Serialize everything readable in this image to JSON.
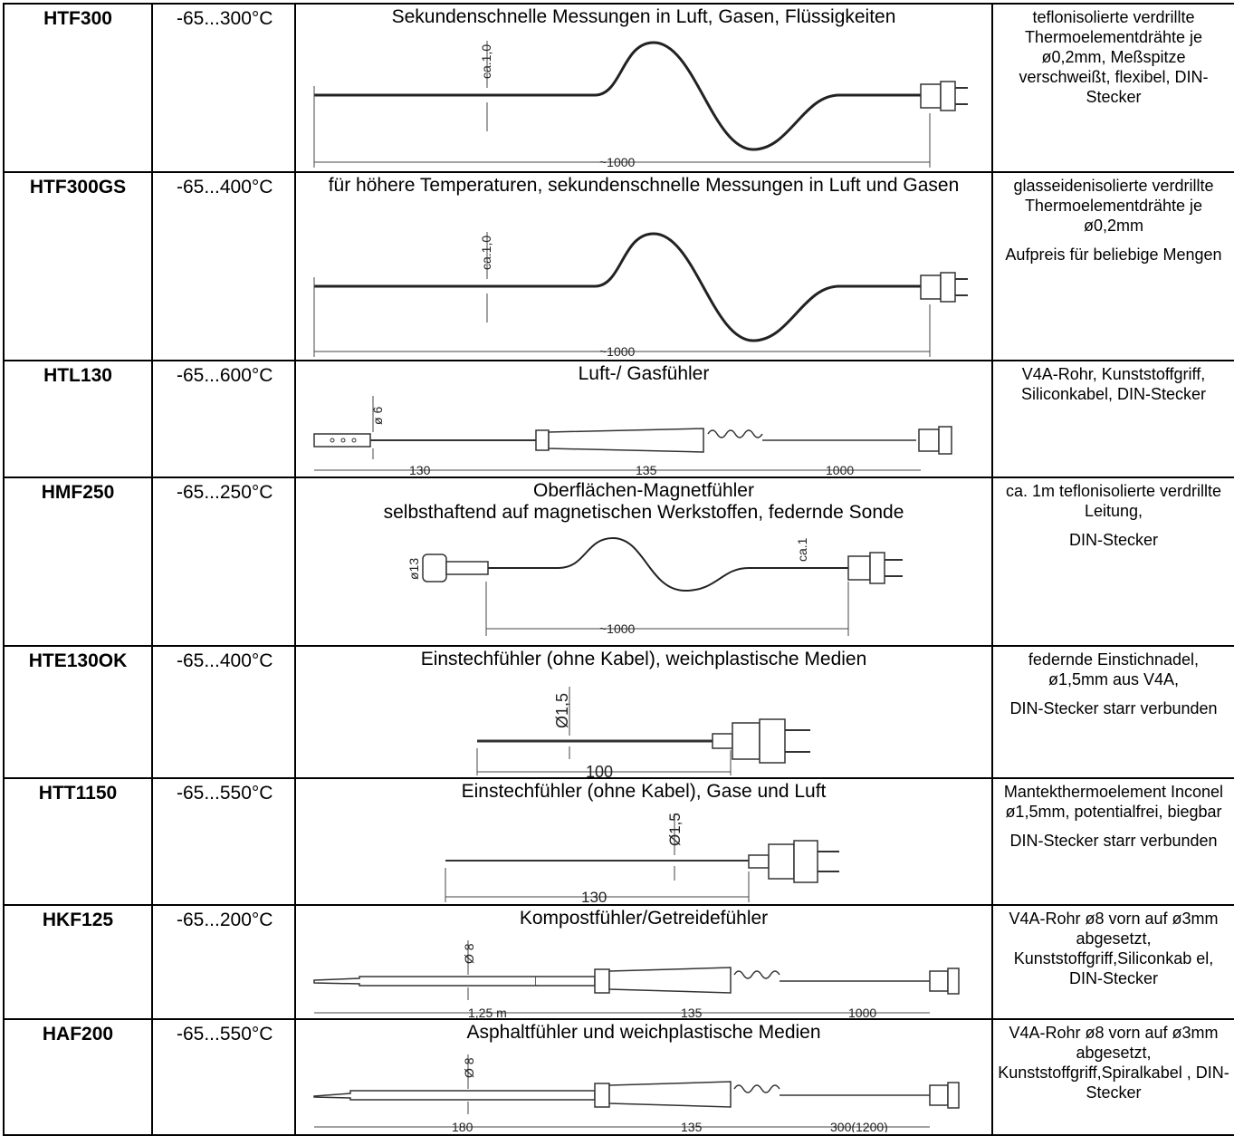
{
  "rows": [
    {
      "model": "HTF300",
      "range": "-65...300°C",
      "desc": [
        "Sekundenschnelle Messungen in Luft, Gasen, Flüssigkeiten"
      ],
      "notes": [
        "teflonisolierte verdrillte Thermoelementdrähte je ø0,2mm, Meßspitze verschweißt, flexibel, DIN-Stecker"
      ],
      "dims": [
        "ca.1,0",
        "~1000"
      ]
    },
    {
      "model": "HTF300GS",
      "range": "-65...400°C",
      "desc": [
        "für höhere Temperaturen, sekundenschnelle Messungen in Luft und Gasen"
      ],
      "notes": [
        "glasseidenisolierte verdrillte Thermoelementdrähte je ø0,2mm",
        "Aufpreis für beliebige Mengen"
      ],
      "dims": [
        "ca.1,0",
        "~1000"
      ]
    },
    {
      "model": "HTL130",
      "range": "-65...600°C",
      "desc": [
        "Luft-/ Gasfühler"
      ],
      "notes": [
        "V4A-Rohr, Kunststoffgriff, Siliconkabel, DIN-Stecker"
      ],
      "dims": [
        "ø 6",
        "130",
        "135",
        "1000"
      ]
    },
    {
      "model": "HMF250",
      "range": "-65...250°C",
      "desc": [
        "Oberflächen-Magnetfühler",
        "selbsthaftend auf magnetischen Werkstoffen, federnde Sonde"
      ],
      "notes": [
        "ca. 1m teflonisolierte verdrillte Leitung,",
        "DIN-Stecker"
      ],
      "dims": [
        "ø13",
        "ca.1",
        "~1000"
      ]
    },
    {
      "model": "HTE130OK",
      "range": "-65...400°C",
      "desc": [
        "Einstechfühler (ohne Kabel), weichplastische Medien"
      ],
      "notes": [
        "federnde Einstichnadel, ø1,5mm aus V4A,",
        "DIN-Stecker starr verbunden"
      ],
      "dims": [
        "Ø1,5",
        "100"
      ]
    },
    {
      "model": "HTT1150",
      "range": "-65...550°C",
      "desc": [
        "Einstechfühler (ohne Kabel), Gase und Luft"
      ],
      "notes": [
        "Mantekthermoelement Inconel ø1,5mm, potentialfrei, biegbar",
        "DIN-Stecker starr verbunden"
      ],
      "dims": [
        "Ø1,5",
        "130"
      ]
    },
    {
      "model": "HKF125",
      "range": "-65...200°C",
      "desc": [
        "Kompostfühler/Getreidefühler"
      ],
      "notes": [
        "V4A-Rohr ø8 vorn auf ø3mm abgesetzt, Kunststoffgriff,Siliconkab el, DIN-Stecker"
      ],
      "dims": [
        "Ø 8",
        "1,25 m",
        "135",
        "1000"
      ]
    },
    {
      "model": "HAF200",
      "range": "-65...550°C",
      "desc": [
        "Asphaltfühler und weichplastische Medien"
      ],
      "notes": [
        "V4A-Rohr ø8 vorn auf ø3mm abgesetzt, Kunststoffgriff,Spiralkabel , DIN-Stecker"
      ],
      "dims": [
        "Ø 8",
        "180",
        "135",
        "300(1200)"
      ]
    }
  ]
}
